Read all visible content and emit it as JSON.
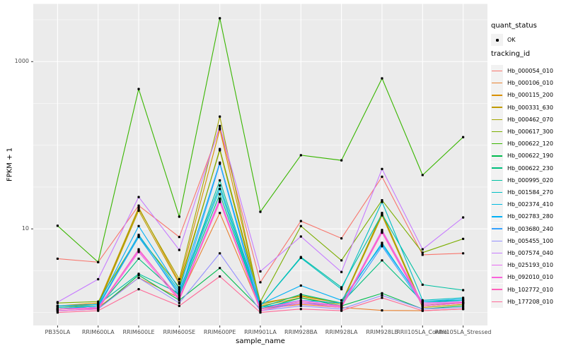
{
  "chart_data": {
    "type": "line",
    "title": "",
    "xlabel": "sample_name",
    "ylabel": "FPKM + 1",
    "y_scale": "log10",
    "ylim": [
      0.7,
      4900
    ],
    "y_tick_values": [
      10,
      1000
    ],
    "y_tick_labels": [
      "10",
      "1000"
    ],
    "y_minor_values": [
      1,
      3.162,
      31.62,
      100,
      316.2,
      3162
    ],
    "grid": true,
    "legend_position": "right",
    "categories": [
      "PB350LA",
      "RRIM600LA",
      "RRIM600LE",
      "RRIM600SE",
      "RRIM600PE",
      "RRIM901LA",
      "RRIM928BA",
      "RRIM928LA",
      "RRIM928LE",
      "RRII105LA_Control",
      "RRII105LA_Stressed"
    ],
    "series": [
      {
        "name": "Hb_000054_010",
        "color": "#F8766D",
        "values": [
          4.4,
          4.0,
          19,
          8.0,
          160,
          2.3,
          12.4,
          7.7,
          42,
          4.9,
          5.1
        ]
      },
      {
        "name": "Hb_000106_010",
        "color": "#EA8331",
        "values": [
          1.1,
          1.15,
          2.6,
          1.5,
          15.5,
          1.1,
          1.25,
          1.15,
          1.06,
          1.05,
          1.1
        ]
      },
      {
        "name": "Hb_000115_200",
        "color": "#D89000",
        "values": [
          1.2,
          1.3,
          18,
          2.3,
          155,
          1.3,
          1.56,
          1.3,
          15,
          1.2,
          1.3
        ]
      },
      {
        "name": "Hb_000331_630",
        "color": "#C09B00",
        "values": [
          1.1,
          1.2,
          16.5,
          2.2,
          87,
          1.2,
          1.5,
          1.25,
          14.5,
          1.15,
          1.25
        ]
      },
      {
        "name": "Hb_000462_070",
        "color": "#A3A500",
        "values": [
          1.15,
          1.25,
          17.5,
          2.5,
          220,
          1.25,
          1.6,
          1.3,
          15.5,
          1.2,
          1.3
        ]
      },
      {
        "name": "Hb_000617_300",
        "color": "#7CAE00",
        "values": [
          1.3,
          1.35,
          8.2,
          2.0,
          90,
          1.35,
          10.8,
          4.2,
          22,
          5.2,
          7.6
        ]
      },
      {
        "name": "Hb_000622_120",
        "color": "#39B600",
        "values": [
          10.9,
          4.0,
          470,
          14,
          3300,
          16,
          76,
          66,
          630,
          44,
          125
        ]
      },
      {
        "name": "Hb_000622_190",
        "color": "#00BB4E",
        "values": [
          1.05,
          1.1,
          2.8,
          1.4,
          3.4,
          1.1,
          1.5,
          1.2,
          1.7,
          1.1,
          1.2
        ]
      },
      {
        "name": "Hb_000622_230",
        "color": "#00BF7D",
        "values": [
          1.1,
          1.15,
          4.4,
          1.6,
          26,
          1.15,
          1.65,
          1.3,
          4.2,
          1.35,
          1.4
        ]
      },
      {
        "name": "Hb_000995_020",
        "color": "#00C1A3",
        "values": [
          1.2,
          1.25,
          2.9,
          1.7,
          38,
          1.2,
          4.6,
          2.0,
          15,
          2.15,
          1.85
        ]
      },
      {
        "name": "Hb_001584_270",
        "color": "#00BFC4",
        "values": [
          1.15,
          1.2,
          8.5,
          1.8,
          33,
          1.2,
          4.5,
          1.9,
          21,
          1.4,
          1.5
        ]
      },
      {
        "name": "Hb_002374_410",
        "color": "#00BAE0",
        "values": [
          1.1,
          1.2,
          8.0,
          1.7,
          30,
          1.15,
          1.4,
          1.3,
          6.8,
          1.3,
          1.4
        ]
      },
      {
        "name": "Hb_002783_280",
        "color": "#00B0F6",
        "values": [
          1.2,
          1.25,
          10.8,
          1.9,
          62,
          1.25,
          2.1,
          1.4,
          6.5,
          1.35,
          1.45
        ]
      },
      {
        "name": "Hb_003680_240",
        "color": "#35A2FF",
        "values": [
          1.1,
          1.15,
          8.3,
          1.6,
          60,
          1.1,
          1.3,
          1.2,
          6.2,
          1.25,
          1.3
        ]
      },
      {
        "name": "Hb_005455_100",
        "color": "#9590FF",
        "values": [
          1.05,
          1.1,
          2.6,
          1.3,
          5.1,
          1.05,
          1.2,
          1.1,
          1.6,
          1.1,
          1.15
        ]
      },
      {
        "name": "Hb_007574_040",
        "color": "#C77CFF",
        "values": [
          1.33,
          2.5,
          24,
          5.6,
          170,
          3.1,
          8.1,
          3.05,
          52,
          5.7,
          13.7
        ]
      },
      {
        "name": "Hb_025193_010",
        "color": "#E76BF3",
        "values": [
          1.1,
          1.15,
          5.5,
          1.5,
          23,
          1.1,
          1.4,
          1.2,
          9.7,
          1.3,
          1.35
        ]
      },
      {
        "name": "Hb_092010_010",
        "color": "#FA62DB",
        "values": [
          1.05,
          1.1,
          5.3,
          1.4,
          22,
          1.05,
          1.3,
          1.15,
          9.0,
          1.2,
          1.3
        ]
      },
      {
        "name": "Hb_102772_010",
        "color": "#FF62BC",
        "values": [
          1.1,
          1.12,
          5.7,
          1.45,
          21,
          1.1,
          1.35,
          1.18,
          9.3,
          1.25,
          1.32
        ]
      },
      {
        "name": "Hb_177208_010",
        "color": "#FF6A98",
        "values": [
          1.0,
          1.05,
          1.9,
          1.2,
          2.7,
          1.0,
          1.1,
          1.05,
          1.5,
          1.05,
          1.1
        ]
      }
    ],
    "legend": {
      "quant_status": {
        "title": "quant_status",
        "items": [
          {
            "label": "OK",
            "marker": "point",
            "color": "#000000"
          }
        ]
      },
      "tracking_id_title": "tracking_id"
    },
    "style": {
      "panel_bg": "#EBEBEB",
      "grid_color": "#FFFFFF",
      "point_color": "#000000",
      "tick_color": "#333333",
      "tick_label_color": "#4D4D4D",
      "legend_key_bg": "#F2F2F2"
    }
  }
}
